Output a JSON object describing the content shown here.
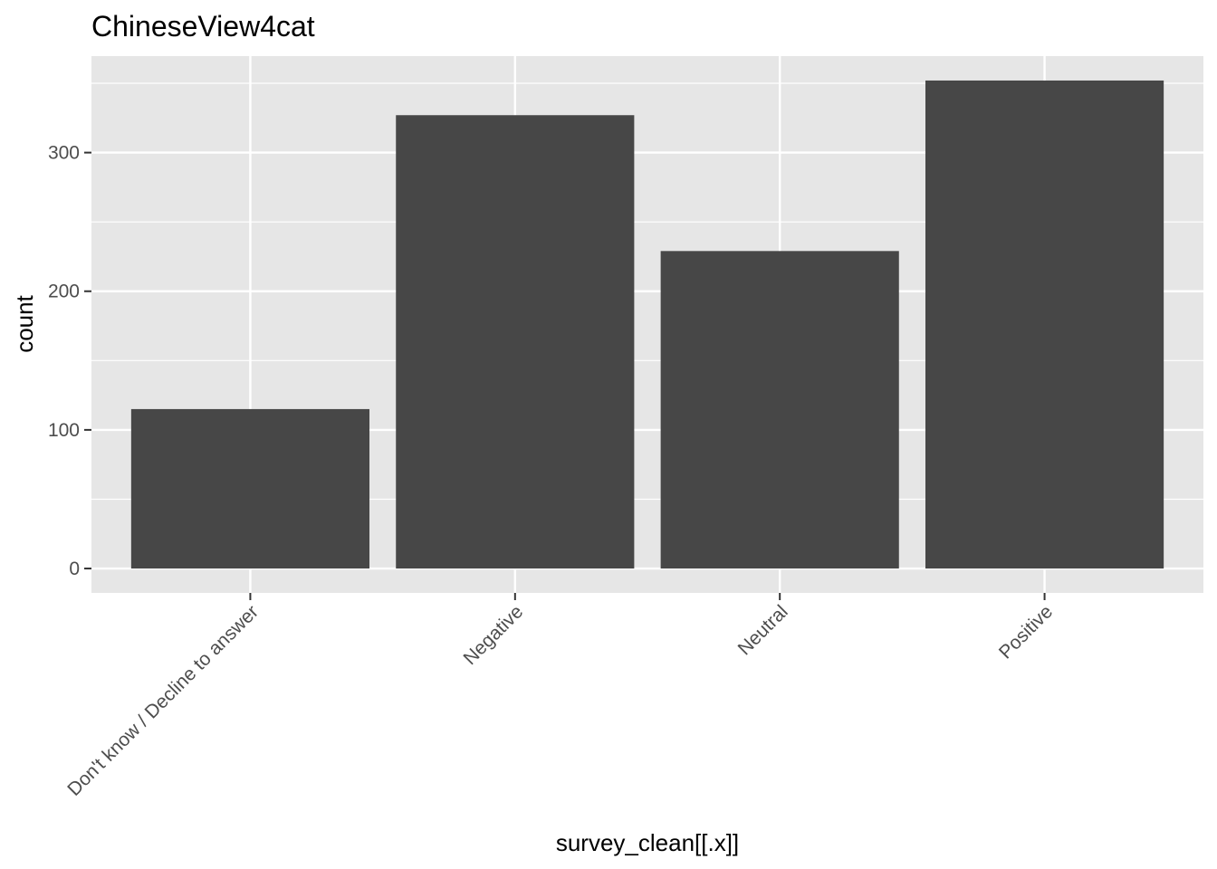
{
  "chart_data": {
    "type": "bar",
    "title": "ChineseView4cat",
    "xlabel": "survey_clean[[.x]]",
    "ylabel": "count",
    "categories": [
      "Don't know / Decline to answer",
      "Negative",
      "Neutral",
      "Positive"
    ],
    "values": [
      115,
      327,
      229,
      352
    ],
    "ylim": [
      -17.6,
      369.6
    ],
    "yticks": [
      0,
      100,
      200,
      300
    ],
    "ytick_labels": [
      "0",
      "100",
      "200",
      "300"
    ],
    "grid": true,
    "legend": "none",
    "colors": {
      "bar": "#474747",
      "panel": "#e6e6e6",
      "grid": "#ffffff",
      "tick_text": "#4d4d4d",
      "tick_mark": "#333333"
    }
  }
}
